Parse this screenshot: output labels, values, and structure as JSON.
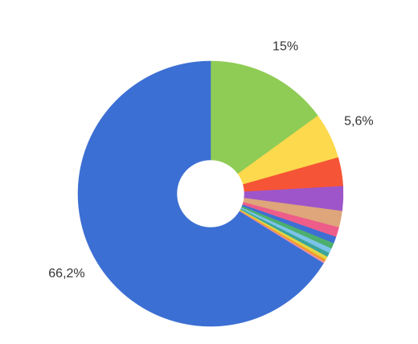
{
  "chart_data": {
    "type": "donut",
    "categories": [
      null,
      null,
      null,
      null,
      null,
      null,
      null,
      null,
      null,
      null,
      null,
      null,
      null,
      null
    ],
    "values": [
      15,
      5.6,
      3.5,
      3,
      2,
      1.2,
      0.8,
      0.7,
      0.6,
      0.5,
      0.4,
      0.3,
      0.2,
      66.2
    ],
    "value_labels": [
      "15%",
      "5,6%",
      null,
      null,
      null,
      null,
      null,
      null,
      null,
      null,
      null,
      null,
      null,
      "66,2%"
    ],
    "colors": [
      "#8fcc55",
      "#fcd94d",
      "#f65436",
      "#9e55c9",
      "#dea67a",
      "#ee5d8a",
      "#3d6fd4",
      "#4caf6e",
      "#7bc3e8",
      "#3aa59b",
      "#e2d547",
      "#f39a2a",
      "#e88fb0",
      "#3c6fd3"
    ]
  }
}
